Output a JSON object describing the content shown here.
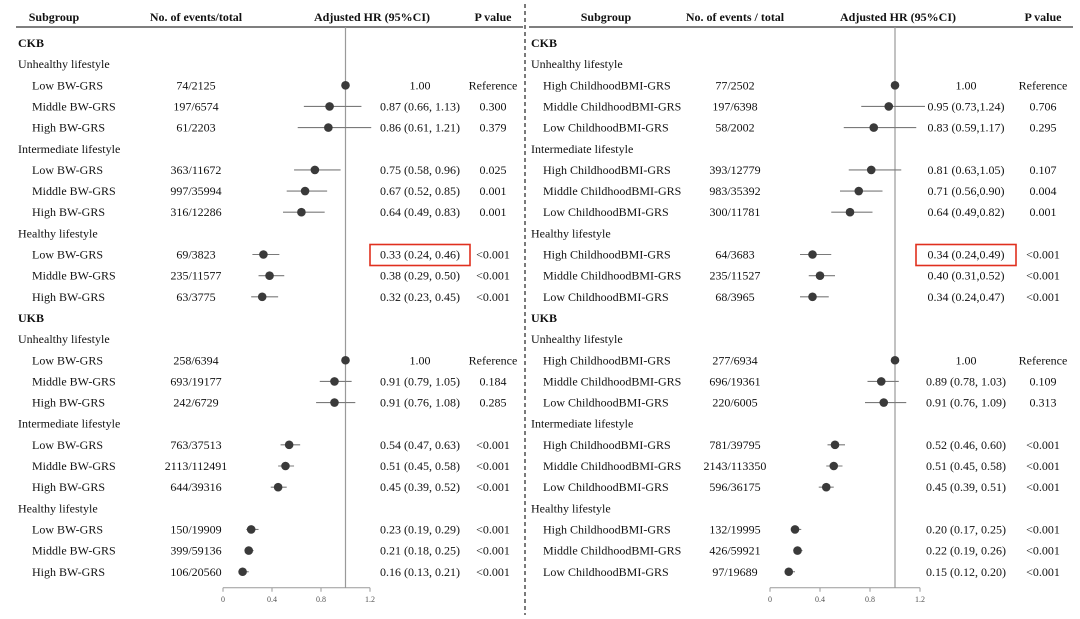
{
  "chart_data": [
    {
      "type": "forest",
      "columns": [
        "Subgroup",
        "No. of events/total",
        "Adjusted HR (95%CI)",
        "P value"
      ],
      "xlim": [
        0,
        1.2
      ],
      "xticks": [
        "0",
        "0.4",
        "0.8",
        "1.2"
      ],
      "reference_line": 1.0,
      "highlighted_row": 10,
      "rows": [
        {
          "kind": "header",
          "label": "CKB"
        },
        {
          "kind": "group",
          "label": "Unhealthy lifestyle"
        },
        {
          "kind": "data",
          "label": "Low BW-GRS",
          "events": "74/2125",
          "hr": 1.0,
          "lo": null,
          "hi": null,
          "ci_text": "1.00",
          "p": "Reference"
        },
        {
          "kind": "data",
          "label": "Middle BW-GRS",
          "events": "197/6574",
          "hr": 0.87,
          "lo": 0.66,
          "hi": 1.13,
          "ci_text": "0.87 (0.66, 1.13)",
          "p": "0.300"
        },
        {
          "kind": "data",
          "label": "High BW-GRS",
          "events": "61/2203",
          "hr": 0.86,
          "lo": 0.61,
          "hi": 1.21,
          "ci_text": "0.86 (0.61, 1.21)",
          "p": "0.379"
        },
        {
          "kind": "group",
          "label": "Intermediate lifestyle"
        },
        {
          "kind": "data",
          "label": "Low BW-GRS",
          "events": "363/11672",
          "hr": 0.75,
          "lo": 0.58,
          "hi": 0.96,
          "ci_text": "0.75 (0.58, 0.96)",
          "p": "0.025"
        },
        {
          "kind": "data",
          "label": "Middle BW-GRS",
          "events": "997/35994",
          "hr": 0.67,
          "lo": 0.52,
          "hi": 0.85,
          "ci_text": "0.67 (0.52, 0.85)",
          "p": "0.001"
        },
        {
          "kind": "data",
          "label": "High BW-GRS",
          "events": "316/12286",
          "hr": 0.64,
          "lo": 0.49,
          "hi": 0.83,
          "ci_text": "0.64 (0.49, 0.83)",
          "p": "0.001"
        },
        {
          "kind": "group",
          "label": "Healthy lifestyle"
        },
        {
          "kind": "data",
          "label": "Low BW-GRS",
          "events": "69/3823",
          "hr": 0.33,
          "lo": 0.24,
          "hi": 0.46,
          "ci_text": "0.33 (0.24, 0.46)",
          "p": "<0.001"
        },
        {
          "kind": "data",
          "label": "Middle BW-GRS",
          "events": "235/11577",
          "hr": 0.38,
          "lo": 0.29,
          "hi": 0.5,
          "ci_text": "0.38 (0.29, 0.50)",
          "p": "<0.001"
        },
        {
          "kind": "data",
          "label": "High BW-GRS",
          "events": "63/3775",
          "hr": 0.32,
          "lo": 0.23,
          "hi": 0.45,
          "ci_text": "0.32 (0.23, 0.45)",
          "p": "<0.001"
        },
        {
          "kind": "header",
          "label": "UKB"
        },
        {
          "kind": "group",
          "label": "Unhealthy lifestyle"
        },
        {
          "kind": "data",
          "label": "Low BW-GRS",
          "events": "258/6394",
          "hr": 1.0,
          "lo": null,
          "hi": null,
          "ci_text": "1.00",
          "p": "Reference"
        },
        {
          "kind": "data",
          "label": "Middle BW-GRS",
          "events": "693/19177",
          "hr": 0.91,
          "lo": 0.79,
          "hi": 1.05,
          "ci_text": "0.91 (0.79, 1.05)",
          "p": "0.184"
        },
        {
          "kind": "data",
          "label": "High BW-GRS",
          "events": "242/6729",
          "hr": 0.91,
          "lo": 0.76,
          "hi": 1.08,
          "ci_text": "0.91 (0.76, 1.08)",
          "p": "0.285"
        },
        {
          "kind": "group",
          "label": "Intermediate lifestyle"
        },
        {
          "kind": "data",
          "label": "Low BW-GRS",
          "events": "763/37513",
          "hr": 0.54,
          "lo": 0.47,
          "hi": 0.63,
          "ci_text": "0.54 (0.47, 0.63)",
          "p": "<0.001"
        },
        {
          "kind": "data",
          "label": "Middle BW-GRS",
          "events": "2113/112491",
          "hr": 0.51,
          "lo": 0.45,
          "hi": 0.58,
          "ci_text": "0.51 (0.45, 0.58)",
          "p": "<0.001"
        },
        {
          "kind": "data",
          "label": "High BW-GRS",
          "events": "644/39316",
          "hr": 0.45,
          "lo": 0.39,
          "hi": 0.52,
          "ci_text": "0.45 (0.39, 0.52)",
          "p": "<0.001"
        },
        {
          "kind": "group",
          "label": "Healthy lifestyle"
        },
        {
          "kind": "data",
          "label": "Low BW-GRS",
          "events": "150/19909",
          "hr": 0.23,
          "lo": 0.19,
          "hi": 0.29,
          "ci_text": "0.23 (0.19, 0.29)",
          "p": "<0.001"
        },
        {
          "kind": "data",
          "label": "Middle BW-GRS",
          "events": "399/59136",
          "hr": 0.21,
          "lo": 0.18,
          "hi": 0.25,
          "ci_text": "0.21 (0.18, 0.25)",
          "p": "<0.001"
        },
        {
          "kind": "data",
          "label": "High BW-GRS",
          "events": "106/20560",
          "hr": 0.16,
          "lo": 0.13,
          "hi": 0.21,
          "ci_text": "0.16 (0.13, 0.21)",
          "p": "<0.001"
        }
      ]
    },
    {
      "type": "forest",
      "columns": [
        "Subgroup",
        "No. of events / total",
        "Adjusted HR (95%CI)",
        "P value"
      ],
      "xlim": [
        0,
        1.2
      ],
      "xticks": [
        "0",
        "0.4",
        "0.8",
        "1.2"
      ],
      "reference_line": 1.0,
      "highlighted_row": 10,
      "rows": [
        {
          "kind": "header",
          "label": "CKB"
        },
        {
          "kind": "group",
          "label": "Unhealthy lifestyle"
        },
        {
          "kind": "data",
          "label": "High ChildhoodBMI-GRS",
          "events": "77/2502",
          "hr": 1.0,
          "lo": null,
          "hi": null,
          "ci_text": "1.00",
          "p": "Reference"
        },
        {
          "kind": "data",
          "label": "Middle ChildhoodBMI-GRS",
          "events": "197/6398",
          "hr": 0.95,
          "lo": 0.73,
          "hi": 1.24,
          "ci_text": "0.95 (0.73,1.24)",
          "p": "0.706"
        },
        {
          "kind": "data",
          "label": "Low ChildhoodBMI-GRS",
          "events": "58/2002",
          "hr": 0.83,
          "lo": 0.59,
          "hi": 1.17,
          "ci_text": "0.83 (0.59,1.17)",
          "p": "0.295"
        },
        {
          "kind": "group",
          "label": "Intermediate lifestyle"
        },
        {
          "kind": "data",
          "label": "High ChildhoodBMI-GRS",
          "events": "393/12779",
          "hr": 0.81,
          "lo": 0.63,
          "hi": 1.05,
          "ci_text": "0.81 (0.63,1.05)",
          "p": "0.107"
        },
        {
          "kind": "data",
          "label": "Middle ChildhoodBMI-GRS",
          "events": "983/35392",
          "hr": 0.71,
          "lo": 0.56,
          "hi": 0.9,
          "ci_text": "0.71 (0.56,0.90)",
          "p": "0.004"
        },
        {
          "kind": "data",
          "label": "Low ChildhoodBMI-GRS",
          "events": "300/11781",
          "hr": 0.64,
          "lo": 0.49,
          "hi": 0.82,
          "ci_text": "0.64 (0.49,0.82)",
          "p": "0.001"
        },
        {
          "kind": "group",
          "label": "Healthy lifestyle"
        },
        {
          "kind": "data",
          "label": "High ChildhoodBMI-GRS",
          "events": "64/3683",
          "hr": 0.34,
          "lo": 0.24,
          "hi": 0.49,
          "ci_text": "0.34 (0.24,0.49)",
          "p": "<0.001"
        },
        {
          "kind": "data",
          "label": "Middle ChildhoodBMI-GRS",
          "events": "235/11527",
          "hr": 0.4,
          "lo": 0.31,
          "hi": 0.52,
          "ci_text": "0.40 (0.31,0.52)",
          "p": "<0.001"
        },
        {
          "kind": "data",
          "label": "Low ChildhoodBMI-GRS",
          "events": "68/3965",
          "hr": 0.34,
          "lo": 0.24,
          "hi": 0.47,
          "ci_text": "0.34 (0.24,0.47)",
          "p": "<0.001"
        },
        {
          "kind": "header",
          "label": "UKB"
        },
        {
          "kind": "group",
          "label": "Unhealthy lifestyle"
        },
        {
          "kind": "data",
          "label": "High ChildhoodBMI-GRS",
          "events": "277/6934",
          "hr": 1.0,
          "lo": null,
          "hi": null,
          "ci_text": "1.00",
          "p": "Reference"
        },
        {
          "kind": "data",
          "label": "Middle ChildhoodBMI-GRS",
          "events": "696/19361",
          "hr": 0.89,
          "lo": 0.78,
          "hi": 1.03,
          "ci_text": "0.89 (0.78, 1.03)",
          "p": "0.109"
        },
        {
          "kind": "data",
          "label": "Low ChildhoodBMI-GRS",
          "events": "220/6005",
          "hr": 0.91,
          "lo": 0.76,
          "hi": 1.09,
          "ci_text": "0.91 (0.76, 1.09)",
          "p": "0.313"
        },
        {
          "kind": "group",
          "label": "Intermediate lifestyle"
        },
        {
          "kind": "data",
          "label": "High ChildhoodBMI-GRS",
          "events": "781/39795",
          "hr": 0.52,
          "lo": 0.46,
          "hi": 0.6,
          "ci_text": "0.52 (0.46, 0.60)",
          "p": "<0.001"
        },
        {
          "kind": "data",
          "label": "Middle ChildhoodBMI-GRS",
          "events": "2143/113350",
          "hr": 0.51,
          "lo": 0.45,
          "hi": 0.58,
          "ci_text": "0.51 (0.45, 0.58)",
          "p": "<0.001"
        },
        {
          "kind": "data",
          "label": "Low ChildhoodBMI-GRS",
          "events": "596/36175",
          "hr": 0.45,
          "lo": 0.39,
          "hi": 0.51,
          "ci_text": "0.45 (0.39, 0.51)",
          "p": "<0.001"
        },
        {
          "kind": "group",
          "label": "Healthy lifestyle"
        },
        {
          "kind": "data",
          "label": "High ChildhoodBMI-GRS",
          "events": "132/19995",
          "hr": 0.2,
          "lo": 0.17,
          "hi": 0.25,
          "ci_text": "0.20 (0.17, 0.25)",
          "p": "<0.001"
        },
        {
          "kind": "data",
          "label": "Middle ChildhoodBMI-GRS",
          "events": "426/59921",
          "hr": 0.22,
          "lo": 0.19,
          "hi": 0.26,
          "ci_text": "0.22 (0.19, 0.26)",
          "p": "<0.001"
        },
        {
          "kind": "data",
          "label": "Low ChildhoodBMI-GRS",
          "events": "97/19689",
          "hr": 0.15,
          "lo": 0.12,
          "hi": 0.2,
          "ci_text": "0.15 (0.12, 0.20)",
          "p": "<0.001"
        }
      ]
    }
  ],
  "colors": {
    "text": "#111111",
    "marker": "#3a3a3a",
    "ci_line": "#7a7a7a",
    "reference_line": "#9a9a9a",
    "axis": "#9a9a9a",
    "highlight": "#e0301e",
    "divider": "#333333"
  }
}
